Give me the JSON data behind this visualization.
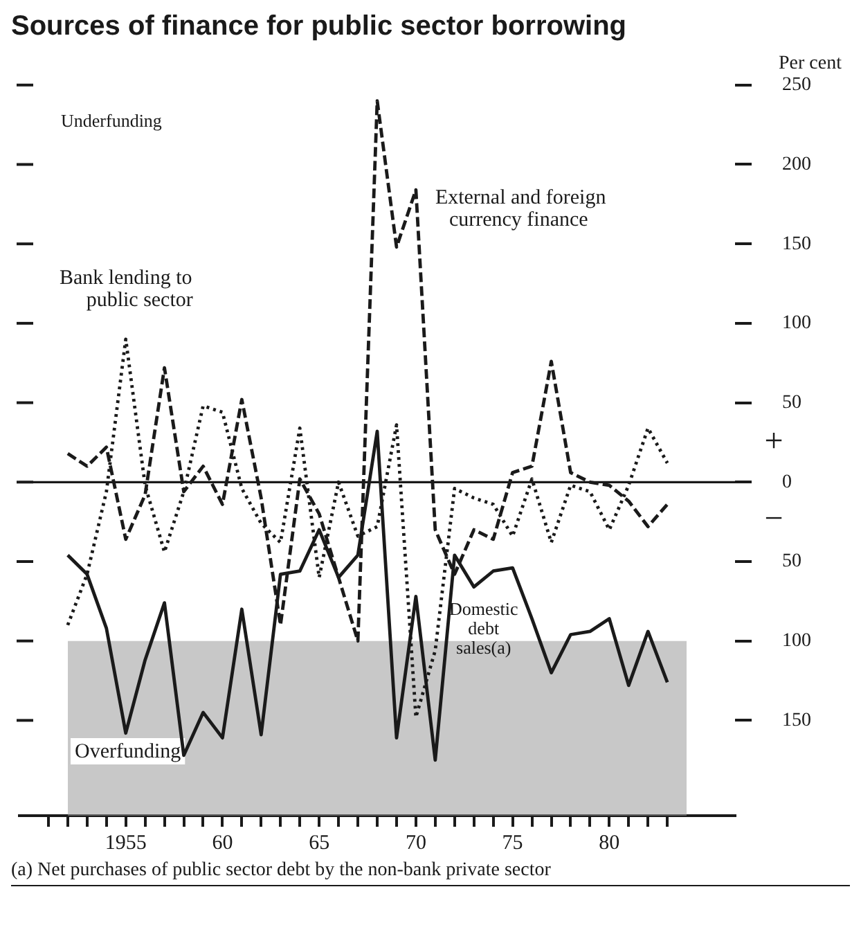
{
  "chart_data": {
    "type": "line",
    "title": "Sources of finance for public sector borrowing",
    "ylabel": "Per cent",
    "x": [
      1952,
      1953,
      1954,
      1955,
      1956,
      1957,
      1958,
      1959,
      1960,
      1961,
      1962,
      1963,
      1964,
      1965,
      1966,
      1967,
      1968,
      1969,
      1970,
      1971,
      1972,
      1973,
      1974,
      1975,
      1976,
      1977,
      1978,
      1979,
      1980,
      1981,
      1982,
      1983
    ],
    "series": [
      {
        "name": "Bank lending to public sector",
        "color": "#1a1a1a",
        "line_style": "dotted",
        "values": [
          -90,
          -58,
          -6,
          90,
          -2,
          -44,
          -6,
          48,
          44,
          -4,
          -26,
          -38,
          34,
          -60,
          0,
          -34,
          -28,
          36,
          -148,
          -106,
          -4,
          -10,
          -14,
          -34,
          2,
          -38,
          -2,
          -6,
          -30,
          -2,
          34,
          12
        ]
      },
      {
        "name": "External and foreign currency finance",
        "color": "#1a1a1a",
        "line_style": "dashed",
        "values": [
          18,
          10,
          22,
          -36,
          -8,
          72,
          -6,
          10,
          -14,
          52,
          -10,
          -90,
          2,
          -20,
          -60,
          -100,
          240,
          148,
          184,
          -30,
          -58,
          -30,
          -36,
          6,
          10,
          76,
          6,
          0,
          -2,
          -12,
          -28,
          -14
        ]
      },
      {
        "name": "Domestic debt sales(a)",
        "color": "#1a1a1a",
        "line_style": "solid",
        "values": [
          -46,
          -58,
          -92,
          -158,
          -112,
          -76,
          -172,
          -145,
          -161,
          -80,
          -159,
          -58,
          -56,
          -30,
          -60,
          -46,
          32,
          -161,
          -72,
          -175,
          -46,
          -66,
          -56,
          -54,
          -86,
          -120,
          -96,
          -94,
          -86,
          -128,
          -94,
          -126
        ]
      }
    ],
    "xlim": [
      1949.5,
      1986.5
    ],
    "xticks": [
      {
        "value": 1951,
        "label": null
      },
      {
        "value": 1952,
        "label": null
      },
      {
        "value": 1953,
        "label": null
      },
      {
        "value": 1954,
        "label": null
      },
      1955,
      {
        "value": 1956,
        "label": null
      },
      {
        "value": 1957,
        "label": null
      },
      {
        "value": 1958,
        "label": null
      },
      {
        "value": 1959,
        "label": null
      },
      {
        "value": 1960,
        "label": "60"
      },
      {
        "value": 1961,
        "label": null
      },
      {
        "value": 1962,
        "label": null
      },
      {
        "value": 1963,
        "label": null
      },
      {
        "value": 1964,
        "label": null
      },
      {
        "value": 1965,
        "label": "65"
      },
      {
        "value": 1966,
        "label": null
      },
      {
        "value": 1967,
        "label": null
      },
      {
        "value": 1968,
        "label": null
      },
      {
        "value": 1969,
        "label": null
      },
      {
        "value": 1970,
        "label": "70"
      },
      {
        "value": 1971,
        "label": null
      },
      {
        "value": 1972,
        "label": null
      },
      {
        "value": 1973,
        "label": null
      },
      {
        "value": 1974,
        "label": null
      },
      {
        "value": 1975,
        "label": "75"
      },
      {
        "value": 1976,
        "label": null
      },
      {
        "value": 1977,
        "label": null
      },
      {
        "value": 1978,
        "label": null
      },
      {
        "value": 1979,
        "label": null
      },
      {
        "value": 1980,
        "label": "80"
      },
      {
        "value": 1981,
        "label": null
      },
      {
        "value": 1982,
        "label": null
      },
      {
        "value": 1983,
        "label": null
      }
    ],
    "ylim": [
      -210,
      250
    ],
    "yticks": [
      {
        "value": -150,
        "label": "150"
      },
      {
        "value": -100,
        "label": "100"
      },
      {
        "value": -50,
        "label": "50"
      },
      0,
      50,
      100,
      150,
      200,
      250
    ],
    "ref_lines": [
      {
        "axis": "y",
        "value": 0,
        "color": "#1a1a1a"
      }
    ],
    "bands": [
      {
        "axis": "y",
        "from": -210,
        "to": -100,
        "label": "Overfunding",
        "color": "#9a9a9a"
      }
    ],
    "annotations": [
      "Underfunding",
      "+",
      "−",
      "(a) Net purchases of public sector debt by the non-bank private sector"
    ],
    "grid": false,
    "legend": false,
    "marker": "none"
  }
}
